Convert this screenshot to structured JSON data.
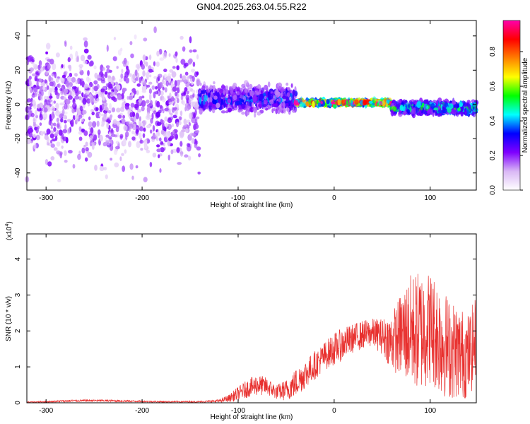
{
  "title": "GN04.2025.263.04.55.R22",
  "colors": {
    "snr_line": "#e8302e",
    "axis": "#000000"
  },
  "chart_data": [
    {
      "type": "heatmap",
      "xlabel": "Height of straight line (km)",
      "ylabel": "Frequency (Hz)",
      "xlim": [
        -320,
        148
      ],
      "ylim": [
        -50,
        49
      ],
      "xticks": [
        -300,
        -200,
        -100,
        0,
        100
      ],
      "yticks": [
        -40,
        -20,
        0,
        20,
        40
      ],
      "colorbar": {
        "label": "Normalized spectral amplitude",
        "range": [
          0,
          0.98
        ],
        "ticks": [
          "0.0",
          "0.2",
          "0.4",
          "0.6",
          "0.8"
        ],
        "colormap": [
          "#ffffff",
          "#d9b7f5",
          "#7f00ff",
          "#0000ff",
          "#00ffff",
          "#00ff00",
          "#ffff00",
          "#ff8000",
          "#ff0000",
          "#ff00aa"
        ]
      },
      "bands": [
        {
          "x": [
            -320,
            -140
          ],
          "center_hz": 0,
          "spread_hz": 49,
          "level": 0.15
        },
        {
          "x": [
            -140,
            -40
          ],
          "center_hz": 3,
          "spread_hz": 10,
          "level": 0.35
        },
        {
          "x": [
            -40,
            60
          ],
          "center_hz": 1,
          "spread_hz": 2,
          "level": 0.95
        },
        {
          "x": [
            60,
            148
          ],
          "center_hz": -2,
          "spread_hz": 5,
          "level": 0.5
        }
      ]
    },
    {
      "type": "line",
      "xlabel": "Height of straight line (km)",
      "ylabel": "SNR (10 * v/v)",
      "y_multiplier": "(x10",
      "y_multiplier_exp": "4",
      "y_multiplier_close": ")",
      "xlim": [
        -320,
        148
      ],
      "ylim": [
        0,
        4.7
      ],
      "xticks": [
        -300,
        -200,
        -100,
        0,
        100
      ],
      "yticks": [
        0,
        1,
        2,
        3,
        4
      ],
      "x": [
        -320,
        -300,
        -280,
        -260,
        -240,
        -220,
        -200,
        -180,
        -160,
        -140,
        -120,
        -110,
        -100,
        -90,
        -80,
        -70,
        -60,
        -50,
        -40,
        -30,
        -20,
        -10,
        0,
        10,
        20,
        30,
        40,
        50,
        60,
        70,
        80,
        90,
        100,
        110,
        120,
        130,
        140,
        148
      ],
      "y": [
        0.02,
        0.03,
        0.05,
        0.06,
        0.06,
        0.05,
        0.04,
        0.03,
        0.03,
        0.03,
        0.05,
        0.12,
        0.25,
        0.4,
        0.5,
        0.45,
        0.3,
        0.35,
        0.55,
        0.8,
        1.05,
        1.3,
        1.5,
        1.65,
        1.8,
        1.9,
        1.95,
        1.85,
        1.7,
        1.9,
        2.0,
        2.0,
        2.1,
        1.8,
        1.5,
        1.4,
        1.3,
        1.8
      ],
      "spread": [
        0.01,
        0.02,
        0.03,
        0.03,
        0.03,
        0.03,
        0.02,
        0.02,
        0.02,
        0.02,
        0.04,
        0.1,
        0.2,
        0.25,
        0.3,
        0.25,
        0.2,
        0.3,
        0.4,
        0.4,
        0.4,
        0.4,
        0.45,
        0.45,
        0.4,
        0.4,
        0.4,
        0.5,
        0.8,
        1.2,
        1.6,
        1.7,
        1.6,
        1.6,
        1.4,
        1.3,
        1.2,
        1.2
      ]
    }
  ]
}
